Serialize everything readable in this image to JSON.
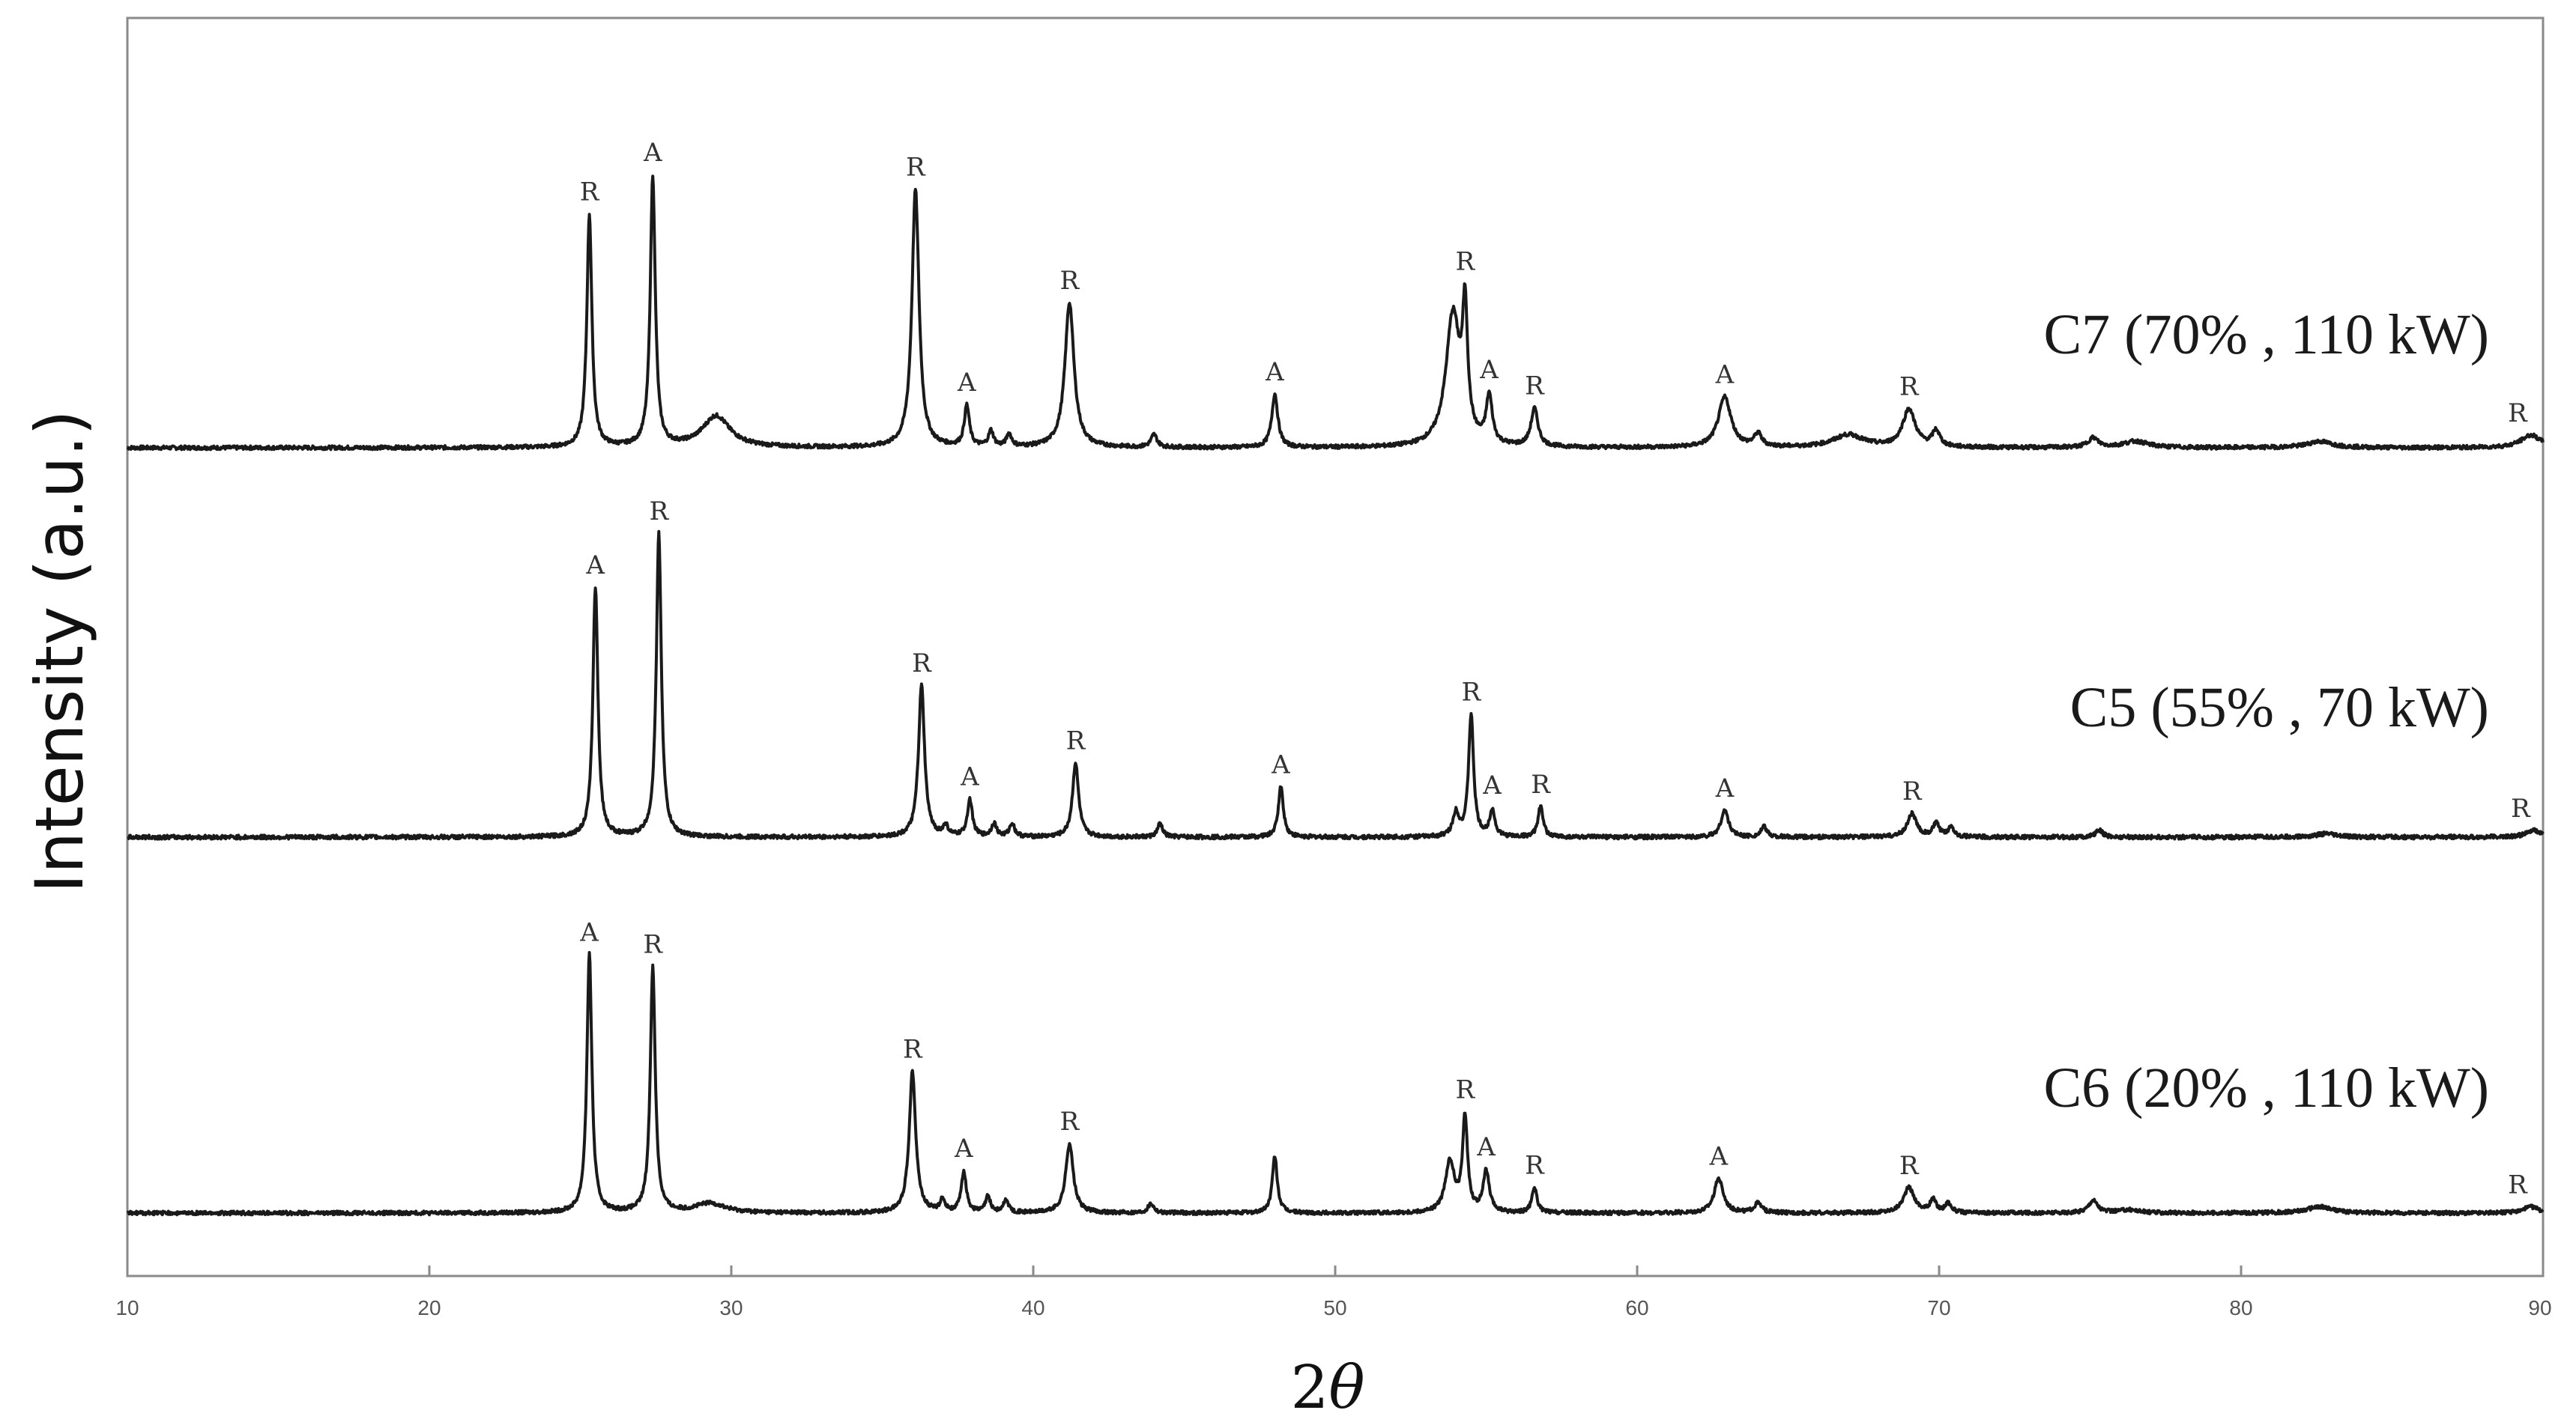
{
  "chart_data": {
    "type": "line",
    "xlabel": "2θ",
    "xlabel_parts": {
      "number": "2",
      "symbol": "θ"
    },
    "ylabel": "Intensity (a.u.)",
    "xlim": [
      10,
      90
    ],
    "x_ticks": [
      10,
      20,
      30,
      40,
      50,
      60,
      70,
      80,
      90
    ],
    "x_tick_labels": [
      "10",
      "20",
      "30",
      "40",
      "50",
      "60",
      "70",
      "80",
      "90"
    ],
    "grid": false,
    "y_ticks_shown": false,
    "series": [
      {
        "name": "C7 (70% , 110 kW)",
        "line_color": "#1a1a1a",
        "baseline": 0.0,
        "peaks": [
          {
            "x": 25.3,
            "h": 0.74,
            "w": 0.1,
            "label": "R"
          },
          {
            "x": 27.4,
            "h": 0.86,
            "w": 0.1,
            "label": "A"
          },
          {
            "x": 29.5,
            "h": 0.1,
            "w": 0.55,
            "label": ""
          },
          {
            "x": 36.1,
            "h": 0.82,
            "w": 0.14,
            "label": "R"
          },
          {
            "x": 37.8,
            "h": 0.13,
            "w": 0.1,
            "label": "A"
          },
          {
            "x": 38.6,
            "h": 0.05,
            "w": 0.1,
            "label": ""
          },
          {
            "x": 39.2,
            "h": 0.04,
            "w": 0.1,
            "label": ""
          },
          {
            "x": 41.2,
            "h": 0.46,
            "w": 0.18,
            "label": "R"
          },
          {
            "x": 44.0,
            "h": 0.04,
            "w": 0.12,
            "label": ""
          },
          {
            "x": 48.0,
            "h": 0.17,
            "w": 0.12,
            "label": "A"
          },
          {
            "x": 53.9,
            "h": 0.42,
            "w": 0.28,
            "label": ""
          },
          {
            "x": 54.3,
            "h": 0.38,
            "w": 0.1,
            "label": "R"
          },
          {
            "x": 55.1,
            "h": 0.15,
            "w": 0.12,
            "label": "A"
          },
          {
            "x": 56.6,
            "h": 0.12,
            "w": 0.14,
            "label": "R"
          },
          {
            "x": 62.9,
            "h": 0.16,
            "w": 0.25,
            "label": "A"
          },
          {
            "x": 64.0,
            "h": 0.04,
            "w": 0.15,
            "label": ""
          },
          {
            "x": 67.0,
            "h": 0.04,
            "w": 0.6,
            "label": ""
          },
          {
            "x": 69.0,
            "h": 0.12,
            "w": 0.25,
            "label": "R"
          },
          {
            "x": 69.9,
            "h": 0.05,
            "w": 0.15,
            "label": ""
          },
          {
            "x": 75.1,
            "h": 0.03,
            "w": 0.2,
            "label": ""
          },
          {
            "x": 76.5,
            "h": 0.02,
            "w": 0.5,
            "label": ""
          },
          {
            "x": 82.6,
            "h": 0.02,
            "w": 0.5,
            "label": ""
          },
          {
            "x": 89.6,
            "h": 0.04,
            "w": 0.4,
            "label": "R"
          }
        ]
      },
      {
        "name": "C5 (55% , 70 kW)",
        "line_color": "#1a1a1a",
        "baseline": 0.0,
        "peaks": [
          {
            "x": 25.5,
            "h": 0.74,
            "w": 0.1,
            "label": "A"
          },
          {
            "x": 27.6,
            "h": 0.9,
            "w": 0.1,
            "label": "R"
          },
          {
            "x": 36.3,
            "h": 0.45,
            "w": 0.12,
            "label": "R"
          },
          {
            "x": 37.1,
            "h": 0.03,
            "w": 0.1,
            "label": ""
          },
          {
            "x": 37.9,
            "h": 0.11,
            "w": 0.1,
            "label": "A"
          },
          {
            "x": 38.7,
            "h": 0.04,
            "w": 0.1,
            "label": ""
          },
          {
            "x": 39.3,
            "h": 0.04,
            "w": 0.1,
            "label": ""
          },
          {
            "x": 41.4,
            "h": 0.22,
            "w": 0.12,
            "label": "R"
          },
          {
            "x": 44.2,
            "h": 0.04,
            "w": 0.1,
            "label": ""
          },
          {
            "x": 48.2,
            "h": 0.15,
            "w": 0.1,
            "label": "A"
          },
          {
            "x": 54.0,
            "h": 0.07,
            "w": 0.12,
            "label": ""
          },
          {
            "x": 54.5,
            "h": 0.36,
            "w": 0.1,
            "label": "R"
          },
          {
            "x": 55.2,
            "h": 0.08,
            "w": 0.1,
            "label": "A"
          },
          {
            "x": 56.8,
            "h": 0.09,
            "w": 0.1,
            "label": "R"
          },
          {
            "x": 62.9,
            "h": 0.08,
            "w": 0.15,
            "label": "A"
          },
          {
            "x": 64.2,
            "h": 0.03,
            "w": 0.12,
            "label": ""
          },
          {
            "x": 69.1,
            "h": 0.07,
            "w": 0.18,
            "label": "R"
          },
          {
            "x": 69.9,
            "h": 0.04,
            "w": 0.12,
            "label": ""
          },
          {
            "x": 70.4,
            "h": 0.03,
            "w": 0.12,
            "label": ""
          },
          {
            "x": 75.3,
            "h": 0.02,
            "w": 0.15,
            "label": ""
          },
          {
            "x": 82.8,
            "h": 0.01,
            "w": 0.4,
            "label": ""
          },
          {
            "x": 89.7,
            "h": 0.02,
            "w": 0.3,
            "label": "R"
          }
        ]
      },
      {
        "name": "C6 (20% , 110 kW)",
        "line_color": "#1a1a1a",
        "baseline": 0.0,
        "peaks": [
          {
            "x": 25.3,
            "h": 0.82,
            "w": 0.1,
            "label": "A"
          },
          {
            "x": 27.4,
            "h": 0.78,
            "w": 0.1,
            "label": "R"
          },
          {
            "x": 29.3,
            "h": 0.03,
            "w": 0.6,
            "label": ""
          },
          {
            "x": 36.0,
            "h": 0.45,
            "w": 0.13,
            "label": "R"
          },
          {
            "x": 37.0,
            "h": 0.04,
            "w": 0.1,
            "label": ""
          },
          {
            "x": 37.7,
            "h": 0.13,
            "w": 0.1,
            "label": "A"
          },
          {
            "x": 38.5,
            "h": 0.05,
            "w": 0.1,
            "label": ""
          },
          {
            "x": 39.1,
            "h": 0.04,
            "w": 0.1,
            "label": ""
          },
          {
            "x": 41.2,
            "h": 0.22,
            "w": 0.15,
            "label": "R"
          },
          {
            "x": 43.9,
            "h": 0.03,
            "w": 0.12,
            "label": ""
          },
          {
            "x": 48.0,
            "h": 0.18,
            "w": 0.1,
            "label": ""
          },
          {
            "x": 53.8,
            "h": 0.16,
            "w": 0.18,
            "label": ""
          },
          {
            "x": 54.3,
            "h": 0.3,
            "w": 0.1,
            "label": "R"
          },
          {
            "x": 55.0,
            "h": 0.13,
            "w": 0.12,
            "label": "A"
          },
          {
            "x": 56.6,
            "h": 0.08,
            "w": 0.1,
            "label": "R"
          },
          {
            "x": 62.7,
            "h": 0.11,
            "w": 0.18,
            "label": "A"
          },
          {
            "x": 64.0,
            "h": 0.03,
            "w": 0.15,
            "label": ""
          },
          {
            "x": 69.0,
            "h": 0.08,
            "w": 0.22,
            "label": "R"
          },
          {
            "x": 69.8,
            "h": 0.04,
            "w": 0.12,
            "label": ""
          },
          {
            "x": 70.3,
            "h": 0.03,
            "w": 0.12,
            "label": ""
          },
          {
            "x": 75.1,
            "h": 0.04,
            "w": 0.18,
            "label": ""
          },
          {
            "x": 76.3,
            "h": 0.01,
            "w": 0.4,
            "label": ""
          },
          {
            "x": 82.6,
            "h": 0.02,
            "w": 0.5,
            "label": ""
          },
          {
            "x": 89.6,
            "h": 0.02,
            "w": 0.3,
            "label": "R"
          }
        ]
      }
    ]
  }
}
